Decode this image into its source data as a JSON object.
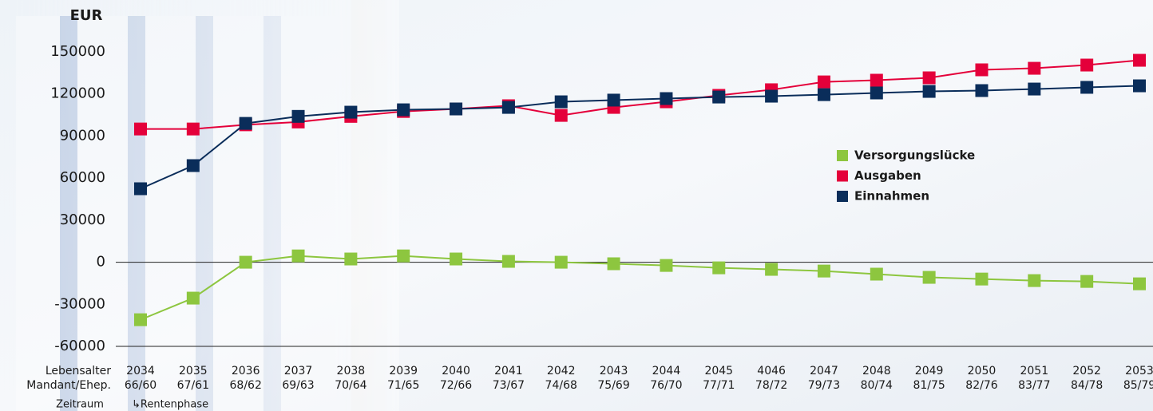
{
  "chart_data": {
    "type": "line",
    "y_axis_label": "EUR",
    "categories": [
      "2034",
      "2035",
      "2036",
      "2037",
      "2038",
      "2039",
      "2040",
      "2041",
      "2042",
      "2043",
      "2044",
      "2045",
      "4046",
      "2047",
      "2048",
      "2049",
      "2050",
      "2051",
      "2052",
      "2053"
    ],
    "category_sublabels": [
      "66/60",
      "67/61",
      "68/62",
      "69/63",
      "70/64",
      "71/65",
      "72/66",
      "73/67",
      "74/68",
      "75/69",
      "76/70",
      "77/71",
      "78/72",
      "79/73",
      "80/74",
      "81/75",
      "82/76",
      "83/77",
      "84/78",
      "85/79"
    ],
    "row_labels": [
      "Lebensalter",
      "Mandant/Ehep.",
      "Zeitraum"
    ],
    "phase_label": "↳Rentenphase",
    "series": [
      {
        "name": "Versorgungslücke",
        "color": "#8dc63f",
        "values": [
          -41000,
          -25600,
          0,
          4500,
          2300,
          4500,
          2300,
          600,
          0,
          -1100,
          -2300,
          -4000,
          -5100,
          -6300,
          -8500,
          -10800,
          -12000,
          -13100,
          -13700,
          -15400
        ]
      },
      {
        "name": "Ausgaben",
        "color": "#e4003a",
        "values": [
          95000,
          95000,
          98000,
          100000,
          104000,
          107500,
          109300,
          111600,
          104700,
          110400,
          114400,
          119000,
          123000,
          128600,
          129800,
          131500,
          137200,
          138300,
          140600,
          144000
        ]
      },
      {
        "name": "Einnahmen",
        "color": "#0a2d5a",
        "values": [
          52400,
          68900,
          99000,
          104000,
          107000,
          108700,
          109300,
          110400,
          114400,
          115600,
          116700,
          117800,
          118400,
          119500,
          120700,
          121800,
          122400,
          123500,
          124700,
          125800
        ]
      }
    ],
    "ylim": [
      -60000,
      150000
    ],
    "yticks": [
      150000,
      120000,
      90000,
      60000,
      30000,
      0,
      -30000,
      -60000
    ],
    "legend": "right"
  }
}
